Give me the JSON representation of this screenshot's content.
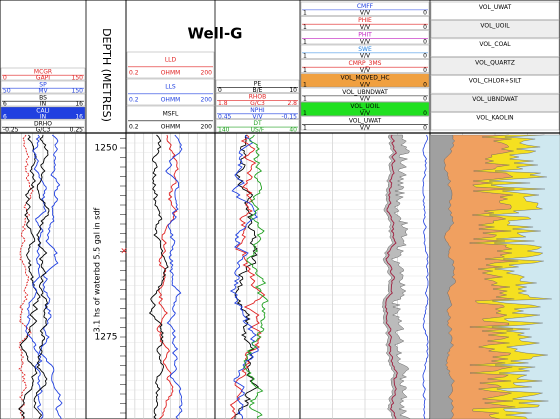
{
  "well_name": "Well-G",
  "depth_title": "DEPTH (METRES)",
  "depth_labels": [
    1250,
    1275
  ],
  "annotation": "3.1 hs of waterbd 5.5 gal in sdf",
  "tracks": [
    {
      "curves": [
        {
          "name": "MCGR",
          "unit": "GAPI",
          "left": "0",
          "right": "150",
          "color": "#e02020"
        },
        {
          "name": "SP",
          "unit": "MV",
          "left": "50",
          "right": "150",
          "color": "#2040e0"
        },
        {
          "name": "BS",
          "unit": "IN",
          "left": "6",
          "right": "16",
          "color": "#000000"
        },
        {
          "name": "CALI",
          "unit": "IN",
          "left": "6",
          "right": "16",
          "color": "#2040e0"
        },
        {
          "name": "DRHO",
          "unit": "G/C3",
          "left": "-0.25",
          "right": "0.25",
          "color": "#000000"
        }
      ]
    },
    {
      "curves": [
        {
          "name": "LLD",
          "unit": "OHMM",
          "left": "0.2",
          "right": "200",
          "color": "#e02020"
        },
        {
          "name": "LLS",
          "unit": "OHMM",
          "left": "0.2",
          "right": "200",
          "color": "#2040e0"
        },
        {
          "name": "MSFL",
          "unit": "OHMM",
          "left": "0.2",
          "right": "200",
          "color": "#000000"
        }
      ]
    },
    {
      "curves": [
        {
          "name": "PE",
          "unit": "B/E",
          "left": "0",
          "right": "10",
          "color": "#000000"
        },
        {
          "name": "RHOB",
          "unit": "G/C3",
          "left": "1.8",
          "right": "2.8",
          "color": "#e02020"
        },
        {
          "name": "NPHI",
          "unit": "V/V",
          "left": "0.45",
          "right": "-0.15",
          "color": "#2040e0"
        },
        {
          "name": "DT",
          "unit": "US/F",
          "left": "140",
          "right": "40",
          "color": "#20a020"
        }
      ]
    },
    {
      "curves": [
        {
          "name": "CMFF",
          "unit": "V/V",
          "left": "1",
          "right": "0",
          "color": "#2040e0"
        },
        {
          "name": "PHIE",
          "unit": "V/V",
          "left": "1",
          "right": "0",
          "color": "#e02020"
        },
        {
          "name": "PHIT",
          "unit": "V/V",
          "left": "1",
          "right": "0",
          "color": "#c020c0"
        },
        {
          "name": "SWE",
          "unit": "V/V",
          "left": "1",
          "right": "0",
          "color": "#2080e0"
        },
        {
          "name": "CMRP_3MS",
          "unit": "V/V",
          "left": "1",
          "right": "0",
          "color": "#e02020"
        },
        {
          "name": "VOL_MOVED_HC",
          "unit": "V/V",
          "left": "1",
          "right": "0",
          "color": "#f0a040"
        },
        {
          "name": "VOL_UBNDWAT",
          "unit": "V/V",
          "left": "1",
          "right": "0",
          "color": "#ffffff"
        },
        {
          "name": "VOL_UOIL",
          "unit": "V/V",
          "left": "1",
          "right": "0",
          "color": "#20e020"
        },
        {
          "name": "VOL_UWAT",
          "unit": "V/V",
          "left": "1",
          "right": "0",
          "color": "#ffffff"
        }
      ]
    },
    {
      "curves": [
        {
          "name": "VOL_UWAT",
          "color": "#ffffff"
        },
        {
          "name": "VOL_UOIL",
          "color": "#20e020"
        },
        {
          "name": "VOL_COAL",
          "color": "#303030"
        },
        {
          "name": "VOL_QUARTZ",
          "color": "#f5e020"
        },
        {
          "name": "VOL_CHLOR+SILT",
          "color": "#f0a060"
        },
        {
          "name": "VOL_UBNDWAT",
          "color": "#ffffff"
        },
        {
          "name": "VOL_KAOLIN",
          "color": "#a0a0a0"
        }
      ]
    }
  ]
}
